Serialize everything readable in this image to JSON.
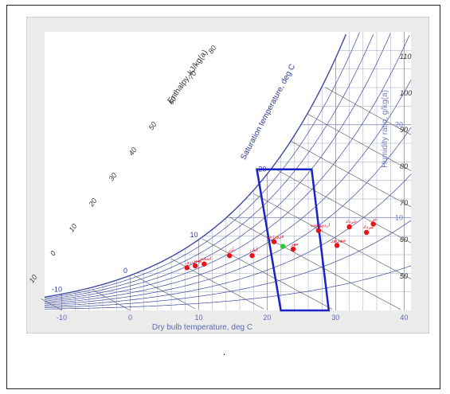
{
  "figure_caption": ".",
  "chart_data": {
    "type": "scatter",
    "title": "",
    "xlabel": "Dry bulb temperature, deg C",
    "ylabel": "Humidity ratio, g/kg(a)",
    "enthalpy_label": "Enthalpy, kJ/kg(a)",
    "saturation_label": "Saturation temperature, deg C",
    "xlim": [
      -12.5,
      41
    ],
    "ylim": [
      0,
      30
    ],
    "x_ticks": [
      "-10",
      "0",
      "10",
      "20",
      "30",
      "40"
    ],
    "rh_ticks": [
      "110",
      "100",
      "90",
      "80",
      "70",
      "60",
      "50"
    ],
    "enthalpy_ticks": [
      "10",
      "0",
      "10",
      "20",
      "30",
      "40",
      "50",
      "60",
      "70",
      "80"
    ],
    "saturation_ticks": [
      "-10",
      "0",
      "10",
      "20"
    ],
    "humidity_ticks": [
      "20",
      "10"
    ],
    "comfort_zone": {
      "points": [
        [
          18.5,
          15.2
        ],
        [
          26.5,
          15.2
        ],
        [
          29.0,
          0.0
        ],
        [
          22.0,
          0.0
        ]
      ]
    },
    "series": [
      {
        "color": "#e8141a",
        "points": [
          {
            "label": "دی",
            "x": 8.3,
            "y": 4.6
          },
          {
            "label": "بهمن",
            "x": 9.5,
            "y": 4.8
          },
          {
            "label": "اسفند",
            "x": 10.8,
            "y": 5.0
          },
          {
            "label": "آذر",
            "x": 14.5,
            "y": 5.9
          },
          {
            "label": "آبان",
            "x": 17.8,
            "y": 5.9
          },
          {
            "label": "فروردین",
            "x": 21.0,
            "y": 7.4
          },
          {
            "label": "مهر",
            "x": 23.8,
            "y": 6.6
          },
          {
            "label": "اردیبهشت",
            "x": 27.5,
            "y": 8.6
          },
          {
            "label": "شهریور",
            "x": 30.2,
            "y": 7.0
          },
          {
            "label": "خرداد",
            "x": 32.0,
            "y": 9.0
          },
          {
            "label": "مرداد",
            "x": 34.5,
            "y": 8.4
          },
          {
            "label": "تیر",
            "x": 35.5,
            "y": 9.3
          }
        ]
      },
      {
        "color": "#2dcc2d",
        "points": [
          {
            "label": "",
            "x": 22.3,
            "y": 6.9
          }
        ]
      }
    ],
    "colors": {
      "curves": "#3d4aa0",
      "grid": "#8890b8",
      "comfort_zone": "#1a23c8",
      "background": "#ffffff",
      "page": "#ebebeb"
    }
  }
}
